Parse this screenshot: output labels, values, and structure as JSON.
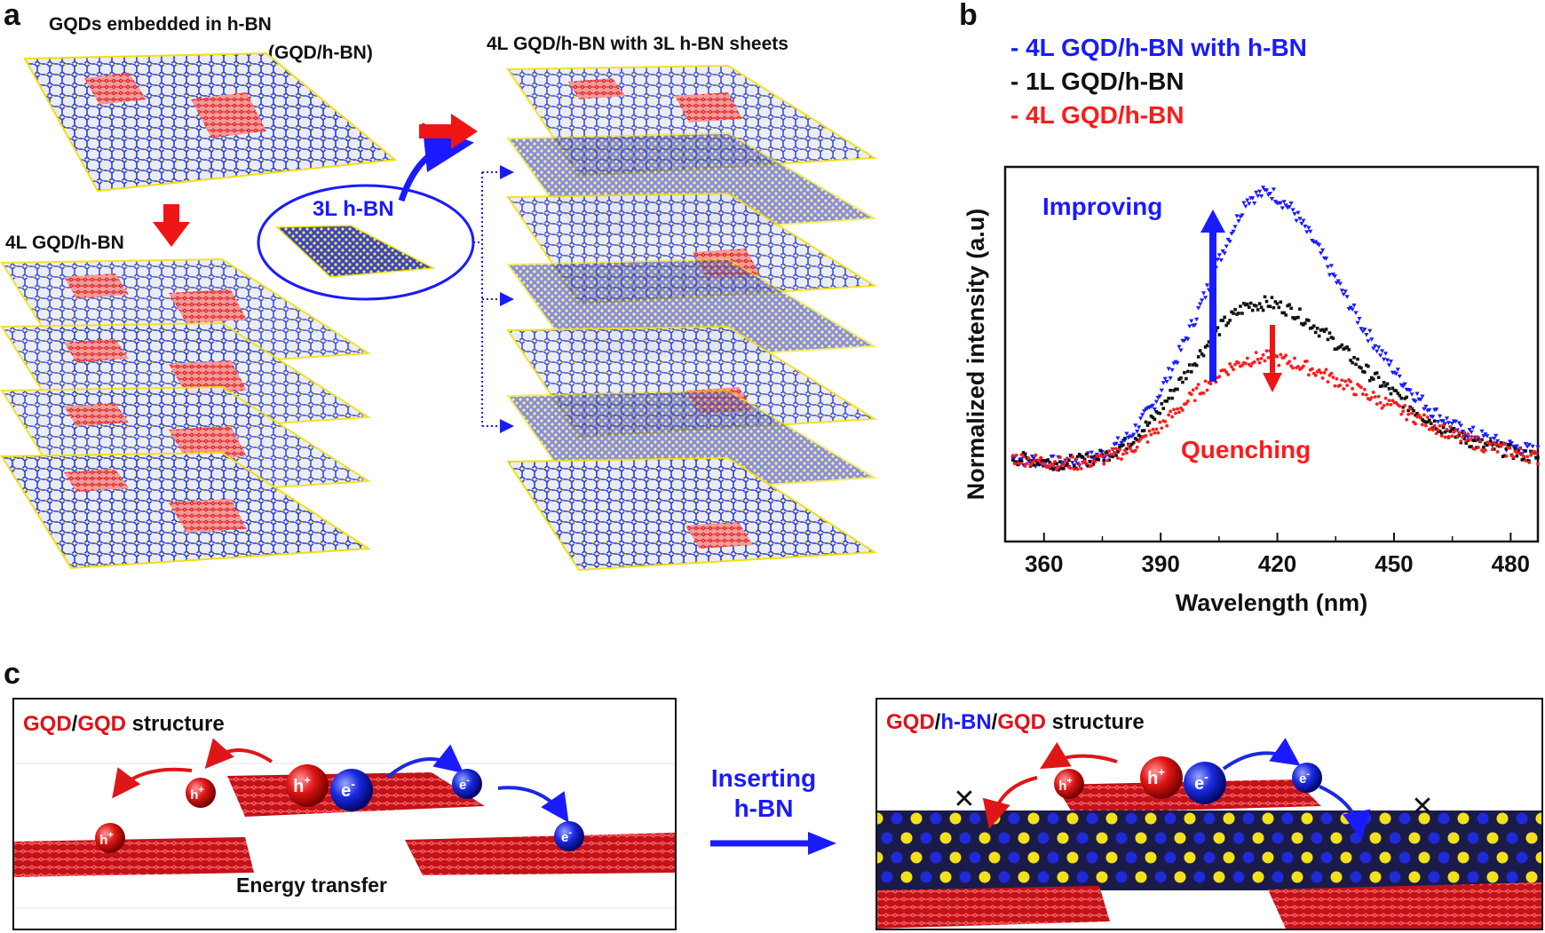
{
  "panels": {
    "a": "a",
    "b": "b",
    "c": "c"
  },
  "panel_a": {
    "top_title": "GQDs embedded in h-BN",
    "top_subtitle": "(GQD/h-BN)",
    "stack_label": "4L GQD/h-BN",
    "insert_label": "3L h-BN",
    "right_title": "4L GQD/h-BN with 3L h-BN sheets"
  },
  "panel_b": {
    "legend": [
      {
        "text": "- 4L GQD/h-BN with h-BN",
        "color": "#1a1aff"
      },
      {
        "text": "- 1L GQD/h-BN",
        "color": "#111111"
      },
      {
        "text": "- 4L GQD/h-BN",
        "color": "#ff1a1a"
      }
    ],
    "annotation_up": "Improving",
    "annotation_down": "Quenching"
  },
  "chart_data": {
    "type": "scatter",
    "title": "",
    "xlabel": "Wavelength (nm)",
    "ylabel": "Normalized intensity (a.u)",
    "xlim": [
      350,
      487
    ],
    "ylim": [
      0,
      1.05
    ],
    "xticks": [
      360,
      390,
      420,
      450,
      480
    ],
    "xtick_labels": [
      "360",
      "390",
      "420",
      "450",
      "480"
    ],
    "series": [
      {
        "name": "- 4L GQD/h-BN with h-BN",
        "color": "#1a1aff",
        "marker": "triangle-down",
        "x": [
          352,
          358,
          364,
          370,
          376,
          382,
          388,
          394,
          400,
          406,
          412,
          418,
          424,
          430,
          436,
          442,
          448,
          454,
          460,
          466,
          472,
          478,
          484,
          487
        ],
        "y": [
          0.02,
          0.01,
          0.0,
          0.01,
          0.04,
          0.1,
          0.21,
          0.38,
          0.57,
          0.78,
          0.97,
          1.0,
          0.93,
          0.8,
          0.65,
          0.5,
          0.38,
          0.27,
          0.19,
          0.13,
          0.1,
          0.07,
          0.05,
          0.04
        ]
      },
      {
        "name": "- 1L GQD/h-BN",
        "color": "#111111",
        "marker": "square",
        "x": [
          352,
          358,
          364,
          370,
          376,
          382,
          388,
          394,
          400,
          406,
          412,
          418,
          424,
          430,
          436,
          442,
          448,
          454,
          460,
          466,
          472,
          478,
          484,
          487
        ],
        "y": [
          0.02,
          0.01,
          0.0,
          0.01,
          0.03,
          0.08,
          0.16,
          0.28,
          0.4,
          0.51,
          0.58,
          0.59,
          0.56,
          0.5,
          0.43,
          0.35,
          0.28,
          0.21,
          0.15,
          0.1,
          0.07,
          0.05,
          0.03,
          0.02
        ]
      },
      {
        "name": "- 4L GQD/h-BN",
        "color": "#ff1a1a",
        "marker": "circle",
        "x": [
          352,
          358,
          364,
          370,
          376,
          382,
          388,
          394,
          400,
          406,
          412,
          418,
          424,
          430,
          436,
          442,
          448,
          454,
          460,
          466,
          472,
          478,
          484,
          487
        ],
        "y": [
          0.02,
          0.01,
          0.0,
          0.0,
          0.02,
          0.05,
          0.11,
          0.19,
          0.27,
          0.34,
          0.38,
          0.39,
          0.37,
          0.34,
          0.3,
          0.26,
          0.22,
          0.18,
          0.14,
          0.1,
          0.07,
          0.05,
          0.03,
          0.02
        ]
      }
    ]
  },
  "panel_c": {
    "left_title": {
      "part1": "GQD",
      "slash1": "/",
      "part2": "GQD",
      "rest": " structure"
    },
    "left_caption": "Energy transfer",
    "middle_label_line1": "Inserting",
    "middle_label_line2": "h-BN",
    "right_title": {
      "part1": "GQD",
      "slash1": "/",
      "part2": "h-BN",
      "slash2": "/",
      "part3": "GQD",
      "rest": " structure"
    },
    "hole": "h",
    "electron": "e",
    "plus": "+",
    "minus": "-",
    "blocked": "✕"
  },
  "colors": {
    "red": "#e0101a",
    "blue": "#1a1aff",
    "yellow": "#f2e11a",
    "navy": "#1f2a9c"
  }
}
